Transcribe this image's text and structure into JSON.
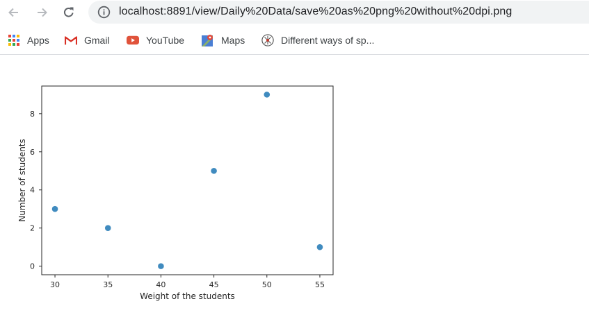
{
  "browser": {
    "url": "localhost:8891/view/Daily%20Data/save%20as%20png%20without%20dpi.png",
    "bookmarks": [
      {
        "label": "Apps",
        "icon": "apps-grid-icon"
      },
      {
        "label": "Gmail",
        "icon": "gmail-icon"
      },
      {
        "label": "YouTube",
        "icon": "youtube-icon"
      },
      {
        "label": "Maps",
        "icon": "maps-icon"
      },
      {
        "label": "Different ways of sp...",
        "icon": "favicon-icon"
      }
    ]
  },
  "chart_data": {
    "type": "scatter",
    "title": "",
    "xlabel": "Weight of the students",
    "ylabel": "Number of students",
    "x": [
      30,
      35,
      40,
      45,
      50,
      55
    ],
    "y": [
      3,
      2,
      0,
      5,
      9,
      1
    ],
    "xticks": [
      30,
      35,
      40,
      45,
      50,
      55
    ],
    "yticks": [
      0,
      2,
      4,
      6,
      8
    ],
    "xlim": [
      28.75,
      56.25
    ],
    "ylim": [
      -0.45,
      9.45
    ],
    "marker_color": "#1f77b4",
    "grid": false
  }
}
